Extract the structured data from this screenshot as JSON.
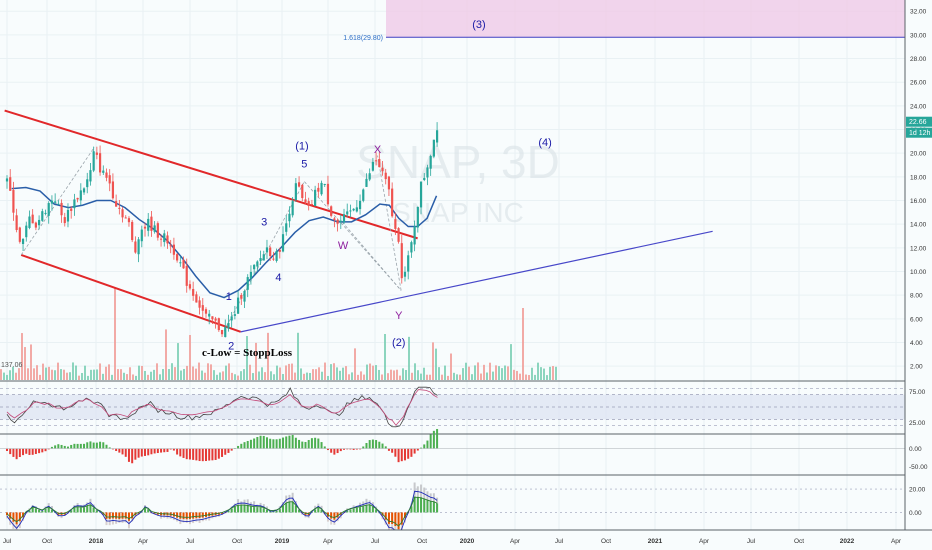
{
  "chart_data": {
    "type": "candlestick",
    "symbol": {
      "watermark_symbol": "SNAP, 3D",
      "watermark_name": "SNAP INC"
    },
    "price_axis": {
      "ticks": [
        "2.00",
        "4.00",
        "6.00",
        "8.00",
        "10.00",
        "12.00",
        "14.00",
        "16.00",
        "18.00",
        "20.00",
        "22.00",
        "24.00",
        "26.00",
        "28.00",
        "30.00",
        "32.00"
      ],
      "ylim": [
        1.0,
        33.2
      ],
      "last_price": "22.66",
      "countdown": "1d 12h"
    },
    "time_axis": {
      "labels": [
        "Jul",
        "Oct",
        "2018",
        "Apr",
        "Jul",
        "Oct",
        "2019",
        "Apr",
        "Jul",
        "Oct",
        "2020",
        "Apr",
        "Jul",
        "Oct",
        "2021",
        "Apr",
        "Jul",
        "Oct",
        "2022",
        "Apr"
      ]
    },
    "price_path": [
      [
        0,
        17.5
      ],
      [
        0.1,
        16.2
      ],
      [
        0.2,
        13.8
      ],
      [
        0.3,
        11.8
      ],
      [
        0.4,
        13.5
      ],
      [
        0.5,
        14.8
      ],
      [
        0.6,
        13.9
      ],
      [
        0.8,
        15.2
      ],
      [
        1.0,
        16.4
      ],
      [
        1.2,
        14.2
      ],
      [
        1.4,
        15.8
      ],
      [
        1.6,
        17.0
      ],
      [
        1.75,
        18.0
      ],
      [
        1.85,
        20.2
      ],
      [
        2.0,
        18.4
      ],
      [
        2.15,
        17.8
      ],
      [
        2.3,
        15.9
      ],
      [
        2.5,
        14.6
      ],
      [
        2.6,
        13.8
      ],
      [
        2.7,
        11.3
      ],
      [
        2.8,
        13.4
      ],
      [
        3.0,
        14.1
      ],
      [
        3.2,
        13.2
      ],
      [
        3.4,
        12.6
      ],
      [
        3.6,
        11.4
      ],
      [
        3.8,
        9.2
      ],
      [
        4.0,
        7.8
      ],
      [
        4.2,
        6.2
      ],
      [
        4.4,
        5.7
      ],
      [
        4.55,
        5.0
      ],
      [
        4.65,
        5.2
      ],
      [
        4.8,
        6.3
      ],
      [
        4.95,
        8.0
      ],
      [
        5.1,
        9.3
      ],
      [
        5.3,
        10.6
      ],
      [
        5.5,
        12.0
      ],
      [
        5.7,
        11.2
      ],
      [
        5.85,
        12.9
      ],
      [
        6.0,
        15.6
      ],
      [
        6.15,
        17.5
      ],
      [
        6.25,
        16.0
      ],
      [
        6.4,
        15.1
      ],
      [
        6.55,
        16.8
      ],
      [
        6.7,
        17.6
      ],
      [
        6.85,
        15.2
      ],
      [
        7.0,
        14.0
      ],
      [
        7.2,
        14.6
      ],
      [
        7.4,
        15.6
      ],
      [
        7.6,
        17.4
      ],
      [
        7.8,
        19.6
      ],
      [
        7.95,
        18.3
      ],
      [
        8.1,
        16.6
      ],
      [
        8.2,
        13.6
      ],
      [
        8.3,
        12.9
      ],
      [
        8.38,
        9.0
      ],
      [
        8.47,
        10.5
      ],
      [
        8.55,
        11.8
      ],
      [
        8.65,
        14.4
      ],
      [
        8.75,
        17.0
      ],
      [
        8.85,
        18.2
      ],
      [
        8.95,
        19.6
      ],
      [
        9.05,
        21.3
      ],
      [
        9.13,
        22.66
      ]
    ],
    "ma_path": [
      [
        0.1,
        17.0
      ],
      [
        0.4,
        17.1
      ],
      [
        0.7,
        16.8
      ],
      [
        1.0,
        15.7
      ],
      [
        1.3,
        15.4
      ],
      [
        1.6,
        15.6
      ],
      [
        1.9,
        16.0
      ],
      [
        2.2,
        16.0
      ],
      [
        2.5,
        15.4
      ],
      [
        2.8,
        14.4
      ],
      [
        3.1,
        13.6
      ],
      [
        3.4,
        12.6
      ],
      [
        3.7,
        11.2
      ],
      [
        4.0,
        9.6
      ],
      [
        4.3,
        8.2
      ],
      [
        4.6,
        7.8
      ],
      [
        4.9,
        8.4
      ],
      [
        5.2,
        9.5
      ],
      [
        5.5,
        10.8
      ],
      [
        5.8,
        12.0
      ],
      [
        6.1,
        13.3
      ],
      [
        6.4,
        14.3
      ],
      [
        6.7,
        14.6
      ],
      [
        7.0,
        14.2
      ],
      [
        7.3,
        14.2
      ],
      [
        7.6,
        14.8
      ],
      [
        7.9,
        15.7
      ],
      [
        8.1,
        15.6
      ],
      [
        8.3,
        14.5
      ],
      [
        8.5,
        13.8
      ],
      [
        8.7,
        13.8
      ],
      [
        8.9,
        14.5
      ],
      [
        9.1,
        16.4
      ]
    ],
    "channel": {
      "upper": [
        [
          -0.05,
          23.6
        ],
        [
          8.7,
          12.8
        ]
      ],
      "lower": [
        [
          0.3,
          11.4
        ],
        [
          4.95,
          4.9
        ]
      ]
    },
    "trendline": [
      [
        4.95,
        4.9
      ],
      [
        14.95,
        13.4
      ]
    ],
    "fib_level": {
      "label": "1.618(29.80)",
      "value": 29.8
    },
    "fib_zone": {
      "from": 29.8,
      "to": 33.2
    },
    "wave_labels": [
      {
        "text": "(1)",
        "t": 6.25,
        "y": 20.3,
        "color": "#1a1aa6"
      },
      {
        "text": "5",
        "t": 6.3,
        "y": 18.8,
        "color": "#1a1aa6"
      },
      {
        "text": "3",
        "t": 5.45,
        "y": 13.9,
        "color": "#1a1aa6"
      },
      {
        "text": "4",
        "t": 5.75,
        "y": 9.2,
        "color": "#1a1aa6"
      },
      {
        "text": "1",
        "t": 4.7,
        "y": 7.6,
        "color": "#1a1aa6"
      },
      {
        "text": "2",
        "t": 4.75,
        "y": 3.4,
        "color": "#1a1aa6"
      },
      {
        "text": "X",
        "t": 7.85,
        "y": 20.0,
        "color": "#8e1f9e"
      },
      {
        "text": "W",
        "t": 7.12,
        "y": 11.9,
        "color": "#8e1f9e"
      },
      {
        "text": "Y",
        "t": 8.3,
        "y": 6.0,
        "color": "#8e1f9e"
      },
      {
        "text": "(2)",
        "t": 8.3,
        "y": 3.7,
        "color": "#1a1aa6"
      },
      {
        "text": "(3)",
        "t": 10.0,
        "y": 30.6,
        "color": "#1a1aa6"
      },
      {
        "text": "(4)",
        "t": 11.4,
        "y": 20.6,
        "color": "#1a1aa6"
      }
    ],
    "annotation": "c-Low = StoppLoss",
    "volume_label": "137.06",
    "rsi": {
      "ticks": [
        "75.00",
        "25.00"
      ],
      "ylim": [
        8,
        92
      ],
      "band": [
        30,
        70
      ]
    },
    "osc1": {
      "ticks": [
        "0.00",
        "-50.00"
      ],
      "ylim": [
        -70,
        40
      ]
    },
    "osc2": {
      "ticks": [
        "20.00",
        "0.00"
      ],
      "ylim": [
        -15,
        32
      ]
    }
  }
}
